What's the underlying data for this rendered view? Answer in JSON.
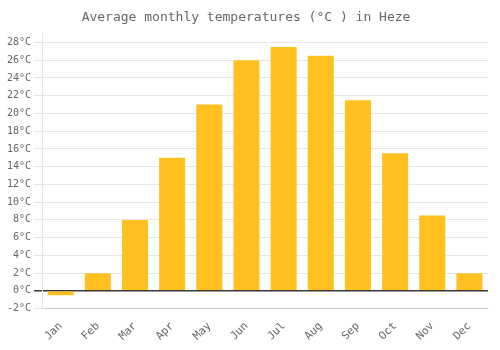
{
  "chart_data": {
    "type": "bar",
    "title": "Average monthly temperatures (°C ) in Heze",
    "categories": [
      "Jan",
      "Feb",
      "Mar",
      "Apr",
      "May",
      "Jun",
      "Jul",
      "Aug",
      "Sep",
      "Oct",
      "Nov",
      "Dec"
    ],
    "values": [
      -0.5,
      2.0,
      8.0,
      15.0,
      21.0,
      26.0,
      27.5,
      26.5,
      21.5,
      15.5,
      8.5,
      2.0
    ],
    "color": "#FFC020",
    "ylim": [
      -2,
      29
    ],
    "yticks": [
      {
        "value": -2,
        "label": "-2°C"
      },
      {
        "value": 0,
        "label": "0°C"
      },
      {
        "value": 2,
        "label": "2°C"
      },
      {
        "value": 4,
        "label": "4°C"
      },
      {
        "value": 6,
        "label": "6°C"
      },
      {
        "value": 8,
        "label": "8°C"
      },
      {
        "value": 10,
        "label": "10°C"
      },
      {
        "value": 12,
        "label": "12°C"
      },
      {
        "value": 14,
        "label": "14°C"
      },
      {
        "value": 16,
        "label": "16°C"
      },
      {
        "value": 18,
        "label": "18°C"
      },
      {
        "value": 20,
        "label": "20°C"
      },
      {
        "value": 22,
        "label": "22°C"
      },
      {
        "value": 24,
        "label": "24°C"
      },
      {
        "value": 26,
        "label": "26°C"
      },
      {
        "value": 28,
        "label": "28°C"
      }
    ],
    "grid": true
  }
}
